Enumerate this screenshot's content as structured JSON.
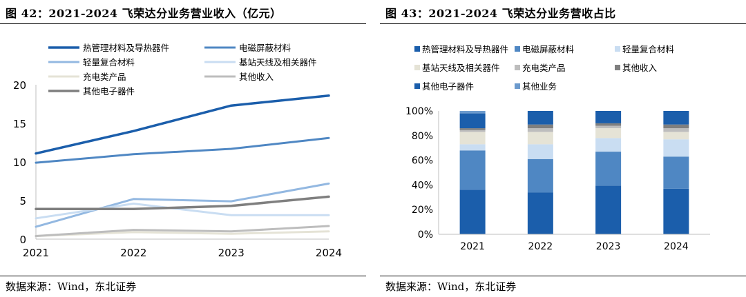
{
  "colors": {
    "thermal": "#1B5EAB",
    "emi": "#4F87C3",
    "light": "#93B8E1",
    "antenna": "#C9DDF2",
    "charging": "#E5E3D6",
    "other_income": "#BDBDBD",
    "other_elec": "#7F7F7F",
    "other_biz": "#6C9ACD"
  },
  "chart_data": [
    {
      "type": "line",
      "title": "图 42：2021-2024 飞荣达分业务营业收入（亿元）",
      "source": "数据来源：Wind，东北证券",
      "x": [
        "2021",
        "2022",
        "2023",
        "2024"
      ],
      "ylim": [
        0,
        20
      ],
      "yticks": [
        "0",
        "5",
        "10",
        "15",
        "20"
      ],
      "legend_position": "top",
      "series": [
        {
          "name": "热管理材料及导热器件",
          "color": "#1B5EAB",
          "width": 3.5,
          "values": [
            11.1,
            14.0,
            17.3,
            18.6
          ]
        },
        {
          "name": "电磁屏蔽材料",
          "color": "#4F87C3",
          "width": 3,
          "values": [
            9.9,
            11.0,
            11.7,
            13.1
          ]
        },
        {
          "name": "轻量复合材料",
          "color": "#93B8E1",
          "width": 3,
          "values": [
            1.6,
            5.2,
            4.9,
            7.2
          ]
        },
        {
          "name": "基站天线及相关器件",
          "color": "#C9DDF2",
          "width": 3,
          "values": [
            2.7,
            4.6,
            3.1,
            3.1
          ]
        },
        {
          "name": "充电类产品",
          "color": "#E5E3D6",
          "width": 3,
          "values": [
            0.4,
            0.9,
            0.7,
            1.0
          ]
        },
        {
          "name": "其他收入",
          "color": "#BDBDBD",
          "width": 3,
          "values": [
            0.4,
            1.2,
            1.0,
            1.7
          ]
        },
        {
          "name": "其他电子器件",
          "color": "#7F7F7F",
          "width": 3.5,
          "values": [
            3.9,
            3.9,
            4.3,
            5.5
          ]
        }
      ]
    },
    {
      "type": "bar",
      "stacked": true,
      "percent": true,
      "title": "图 43：2021-2024 飞荣达分业务营收占比",
      "source": "数据来源：Wind，东北证券",
      "categories": [
        "2021",
        "2022",
        "2023",
        "2024"
      ],
      "ylim": [
        0,
        100
      ],
      "yticks": [
        "0%",
        "20%",
        "40%",
        "60%",
        "80%",
        "100%"
      ],
      "legend_position": "top",
      "series": [
        {
          "name": "热管理材料及导热器件",
          "color": "#1B5EAB",
          "values": [
            36,
            34,
            39.5,
            37
          ]
        },
        {
          "name": "电磁屏蔽材料",
          "color": "#4F87C3",
          "values": [
            32,
            27,
            27.5,
            26
          ]
        },
        {
          "name": "轻量复合材料",
          "color": "#C9DDF2",
          "values": [
            5,
            12,
            11,
            14
          ]
        },
        {
          "name": "基站天线及相关器件",
          "color": "#E5E3D6",
          "values": [
            10,
            10,
            8,
            6
          ]
        },
        {
          "name": "充电类产品",
          "color": "#BDBDBD",
          "values": [
            1.5,
            3,
            2,
            3
          ]
        },
        {
          "name": "其他收入",
          "color": "#7F7F7F",
          "values": [
            1.5,
            3,
            2,
            3
          ]
        },
        {
          "name": "其他电子器件",
          "color": "#1B5EAB",
          "values": [
            12,
            11,
            10,
            11
          ]
        },
        {
          "name": "其他业务",
          "color": "#6C9ACD",
          "values": [
            2,
            0,
            0,
            0
          ]
        }
      ]
    }
  ]
}
